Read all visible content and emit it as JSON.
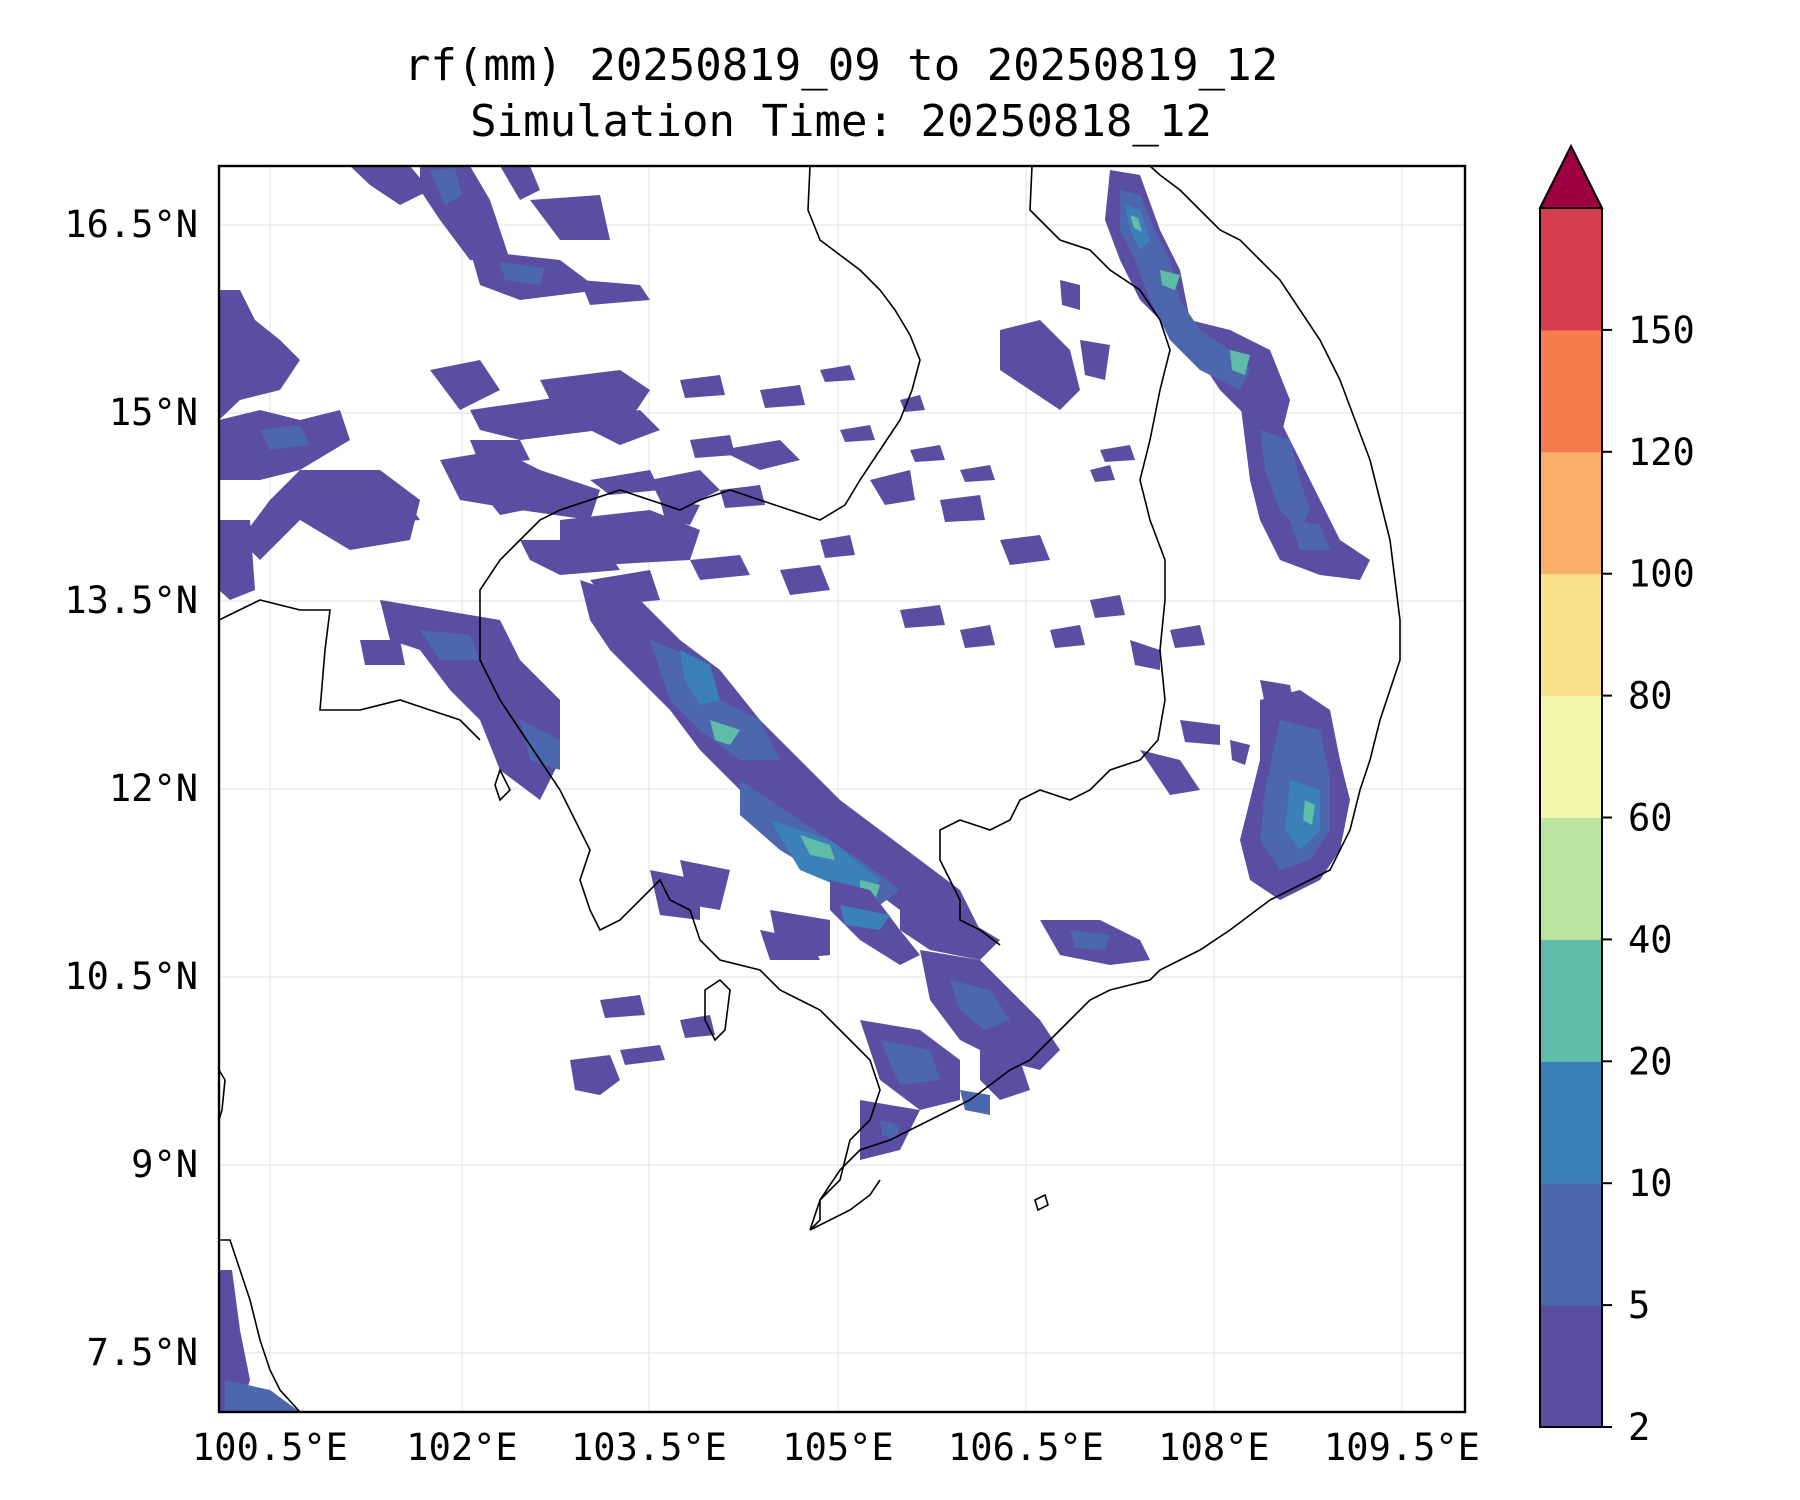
{
  "title": "rf(mm) 20250819_09 to 20250819_12",
  "subtitle": "Simulation Time: 20250818_12",
  "map": {
    "lon_ticks": [
      "100.5°E",
      "102°E",
      "103.5°E",
      "105°E",
      "106.5°E",
      "108°E",
      "109.5°E"
    ],
    "lat_ticks": [
      "16.5°N",
      "15°N",
      "13.5°N",
      "12°N",
      "10.5°N",
      "9°N",
      "7.5°N"
    ],
    "gridlines": true,
    "extent": {
      "lon": [
        100.5,
        110.4
      ],
      "lat": [
        7.1,
        17.0
      ]
    }
  },
  "colorbar": {
    "levels": [
      "2",
      "5",
      "10",
      "20",
      "40",
      "60",
      "80",
      "100",
      "120",
      "150"
    ],
    "colors": [
      "#5a4ea2",
      "#4d67ae",
      "#3b80b9",
      "#60bba8",
      "#bde5a0",
      "#f1f8ab",
      "#fbe189",
      "#f8b06a",
      "#f47c4d",
      "#d53e4f"
    ],
    "extend_color": "#9e0142",
    "extend": "max",
    "placement": "right"
  },
  "chart_data": {
    "type": "heatmap",
    "title": "rf(mm) 20250819_09 to 20250819_12",
    "subtitle": "Simulation Time: 20250818_12",
    "x_ticks": [
      "100.5°E",
      "102°E",
      "103.5°E",
      "105°E",
      "106.5°E",
      "108°E",
      "109.5°E"
    ],
    "y_ticks": [
      "16.5°N",
      "15°N",
      "13.5°N",
      "12°N",
      "10.5°N",
      "9°N",
      "7.5°N"
    ],
    "colorbar_levels": [
      2,
      5,
      10,
      20,
      40,
      60,
      80,
      100,
      120,
      150
    ]
  }
}
